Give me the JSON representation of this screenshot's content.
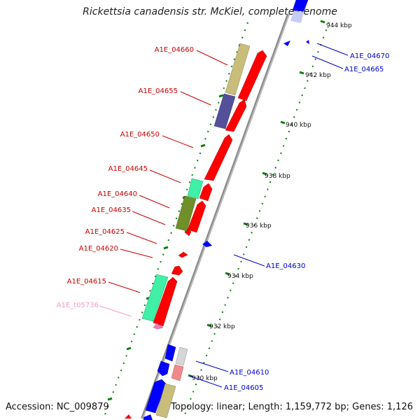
{
  "title": "Rickettsia canadensis str. McKiel, complete genome",
  "footer": {
    "accession": "Accession: NC_009879",
    "topology": "Topology: linear; Length: 1,159,772 bp; Genes: 1,126"
  },
  "colors": {
    "backbone": "#8c8c8c",
    "forward_gene": "#ff0000",
    "reverse_gene": "#0000ff",
    "forward_label": "#cc0000",
    "reverse_label": "#0000cc",
    "trna_label": "#f59ac8",
    "tick": "#0a7d0a",
    "khaki": "#c8bd7a",
    "slate": "#55509a",
    "mint": "#3ff0a6",
    "olive": "#6f8f2a",
    "pink": "#f08a8a",
    "light_gray": "#d6d6d6"
  },
  "ticks": [
    "944 kbp",
    "942 kbp",
    "940 kbp",
    "938 kbp",
    "936 kbp",
    "934 kbp",
    "932 kbp",
    "930 kbp"
  ],
  "forward_labels": [
    "A1E_04660",
    "A1E_04655",
    "A1E_04650",
    "A1E_04645",
    "A1E_04640",
    "A1E_04635",
    "A1E_04625",
    "A1E_04620",
    "A1E_04615",
    "A1E_t05736"
  ],
  "reverse_labels": [
    "A1E_04670",
    "A1E_04665",
    "A1E_04630",
    "A1E_04610",
    "A1E_04605"
  ]
}
